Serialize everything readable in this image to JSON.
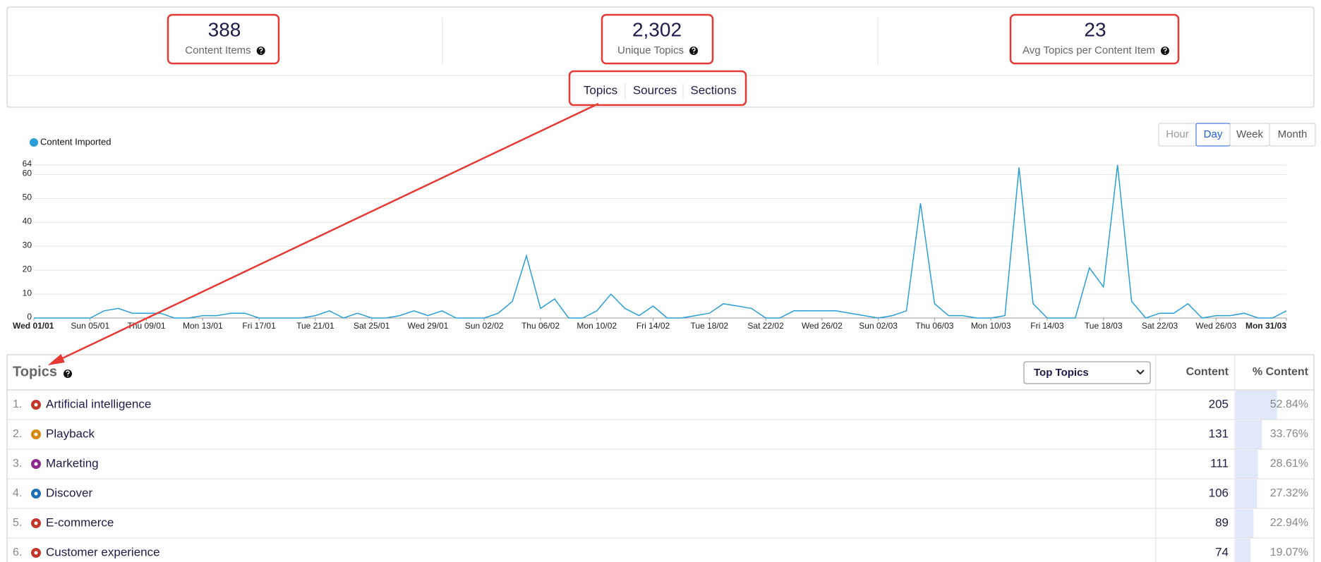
{
  "stats": [
    {
      "value": "388",
      "label": "Content Items"
    },
    {
      "value": "2,302",
      "label": "Unique Topics"
    },
    {
      "value": "23",
      "label": "Avg Topics per Content Item"
    }
  ],
  "tabs": [
    "Topics",
    "Sources",
    "Sections"
  ],
  "granularity": {
    "options": [
      "Hour",
      "Day",
      "Week",
      "Month"
    ],
    "selected": 1
  },
  "chart": {
    "type": "line",
    "legend": "Content Imported",
    "color": "#2a9fd6",
    "x": [
      "Wed 01/01",
      null,
      null,
      null,
      "Sun 05/01",
      null,
      null,
      null,
      "Thu 09/01",
      null,
      null,
      null,
      "Mon 13/01",
      null,
      null,
      null,
      "Fri 17/01",
      null,
      null,
      null,
      "Tue 21/01",
      null,
      null,
      null,
      "Sat 25/01",
      null,
      null,
      null,
      "Wed 29/01",
      null,
      null,
      null,
      "Sun 02/02",
      null,
      null,
      null,
      "Thu 06/02",
      null,
      null,
      null,
      "Mon 10/02",
      null,
      null,
      null,
      "Fri 14/02",
      null,
      null,
      null,
      "Tue 18/02",
      null,
      null,
      null,
      "Sat 22/02",
      null,
      null,
      null,
      "Wed 26/02",
      null,
      null,
      null,
      "Sun 02/03",
      null,
      null,
      null,
      "Thu 06/03",
      null,
      null,
      null,
      "Mon 10/03",
      null,
      null,
      null,
      "Fri 14/03",
      null,
      null,
      null,
      "Tue 18/03",
      null,
      null,
      null,
      "Sat 22/03",
      null,
      null,
      null,
      "Wed 26/03",
      null,
      null,
      null,
      null,
      "Mon 31/03"
    ],
    "values": [
      0,
      0,
      0,
      0,
      0,
      3,
      4,
      2,
      2,
      2,
      0,
      0,
      1,
      1,
      2,
      2,
      0,
      0,
      0,
      0,
      1,
      3,
      0,
      2,
      0,
      0,
      1,
      3,
      1,
      3,
      0,
      0,
      0,
      2,
      7,
      26,
      4,
      8,
      0,
      0,
      3,
      10,
      4,
      1,
      5,
      0,
      0,
      1,
      2,
      6,
      5,
      4,
      0,
      0,
      3,
      3,
      3,
      3,
      2,
      1,
      0,
      1,
      3,
      48,
      6,
      1,
      1,
      0,
      0,
      1,
      63,
      6,
      0,
      0,
      0,
      21,
      13,
      64,
      7,
      0,
      2,
      2,
      6,
      0,
      1,
      1,
      2,
      0,
      0,
      3
    ],
    "ylim": [
      0,
      64
    ],
    "yticks": [
      0,
      10,
      20,
      30,
      40,
      50,
      60,
      64
    ],
    "grid": true
  },
  "table": {
    "title": "Topics",
    "dropdown": "Top Topics",
    "columns": [
      "Content",
      "% Content"
    ],
    "rows": [
      {
        "rank": "1.",
        "name": "Artificial intelligence",
        "icon_color": "#c0392b",
        "content": 205,
        "percent": {
          "value": 52.84,
          "label": "52.84%"
        }
      },
      {
        "rank": "2.",
        "name": "Playback",
        "icon_color": "#d68910",
        "content": 131,
        "percent": {
          "value": 33.76,
          "label": "33.76%"
        }
      },
      {
        "rank": "3.",
        "name": "Marketing",
        "icon_color": "#8e2a8e",
        "content": 111,
        "percent": {
          "value": 28.61,
          "label": "28.61%"
        }
      },
      {
        "rank": "4.",
        "name": "Discover",
        "icon_color": "#1f6fb5",
        "content": 106,
        "percent": {
          "value": 27.32,
          "label": "27.32%"
        }
      },
      {
        "rank": "5.",
        "name": "E-commerce",
        "icon_color": "#c0392b",
        "content": 89,
        "percent": {
          "value": 22.94,
          "label": "22.94%"
        }
      },
      {
        "rank": "6.",
        "name": "Customer experience",
        "icon_color": "#c0392b",
        "content": 74,
        "percent": {
          "value": 19.07,
          "label": "19.07%"
        }
      }
    ]
  }
}
